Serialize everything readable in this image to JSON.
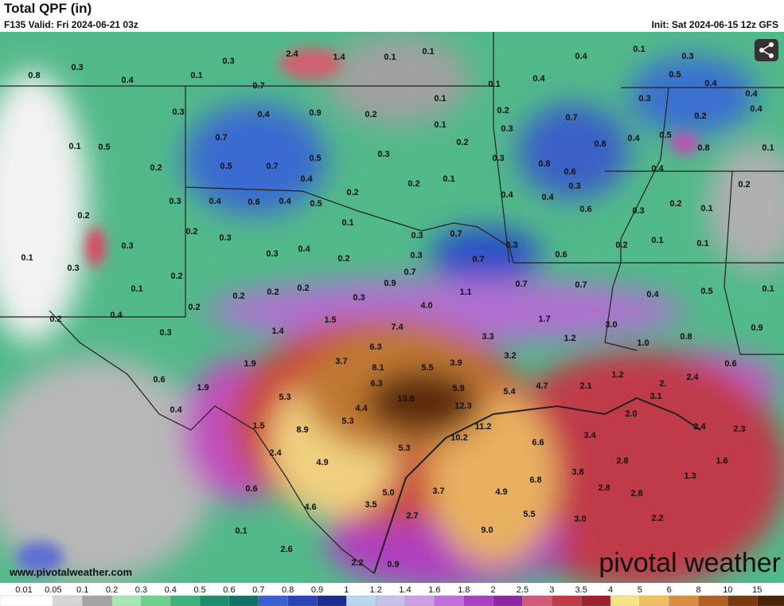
{
  "header": {
    "title": "Total QPF (in)",
    "valid": "F135 Valid: Fri 2024-06-21 03z",
    "init": "Init: Sat 2024-06-15 12z GFS"
  },
  "map": {
    "labels": [
      "0.8",
      "0.3",
      "0.4",
      "0.1",
      "0.3",
      "2.4",
      "1.4",
      "0.1",
      "0.1",
      "0.7",
      "0.3",
      "0.4",
      "0.9",
      "0.2",
      "0.1",
      "0.1",
      "0.4",
      "0.4",
      "0.1",
      "0.3",
      "0.5",
      "0.4",
      "0.4",
      "0.3",
      "0.2",
      "0.7",
      "0.2",
      "0.4",
      "0.1",
      "0.5",
      "0.7",
      "0.1",
      "0.3",
      "0.8",
      "0.4",
      "0.5",
      "0.8",
      "0.1",
      "0.2",
      "0.5",
      "0.7",
      "0.5",
      "0.3",
      "0.2",
      "0.3",
      "0.8",
      "0.6",
      "0.4",
      "0.1",
      "0.2",
      "0.2",
      "0.4",
      "0.4",
      "0.3",
      "0.2",
      "0.2",
      "0.3",
      "0.4",
      "0.6",
      "0.4",
      "0.4",
      "0.5",
      "0.1",
      "0.6",
      "0.3",
      "0.2",
      "0.1",
      "0.2",
      "0.3",
      "0.3",
      "0.7",
      "0.3",
      "0.1",
      "0.1",
      "0.3",
      "0.3",
      "0.4",
      "0.2",
      "0.3",
      "0.7",
      "0.6",
      "0.2",
      "0.1",
      "0.3",
      "0.2",
      "0.7",
      "0.9",
      "0.7",
      "0.7",
      "0.1",
      "0.2",
      "0.2",
      "0.2",
      "0.3",
      "1.1",
      "0.4",
      "0.5",
      "0.1",
      "0.2",
      "4.0",
      "0.4",
      "0.2",
      "1.7",
      "3.0",
      "1.5",
      "7.4",
      "0.3",
      "1.4",
      "3.3",
      "1.2",
      "0.8",
      "0.9",
      "6.3",
      "1.0",
      "3.2",
      "3.7",
      "1.9",
      "8.1",
      "5.5",
      "3.9",
      "1.2",
      "2.4",
      "0.6",
      "0.6",
      "6.3",
      "5.9",
      "5.4",
      "4.7",
      "2.1",
      "2.",
      "1.9",
      "5.3",
      "13.6",
      "3.1",
      "4.4",
      "12.3",
      "0.4",
      "5.3",
      "2.0",
      "1.5",
      "11.2",
      "8.9",
      "10.2",
      "2.4",
      "2.3",
      "3.4",
      "6.6",
      "5.3",
      "2.4",
      "4.9",
      "2.8",
      "1.6",
      "3.8",
      "6.8",
      "1.3",
      "0.6",
      "3.7",
      "4.9",
      "5.0",
      "2.8",
      "2.8",
      "4.6",
      "3.5",
      "2.7",
      "5.5",
      "3.0",
      "2.2",
      "9.0",
      "0.1",
      "2.6",
      "2.2",
      "0.9"
    ]
  },
  "footer": {
    "website": "www.pivotalweather.com",
    "logo": "pivotal weather"
  },
  "colorbar": {
    "labels": [
      "0.01",
      "0.05",
      "0.1",
      "0.2",
      "0.3",
      "0.4",
      "0.5",
      "0.6",
      "0.7",
      "0.8",
      "0.9",
      "1",
      "1.2",
      "1.4",
      "1.6",
      "1.8",
      "2",
      "2.5",
      "3",
      "3.5",
      "4",
      "5",
      "6",
      "8",
      "10",
      "15"
    ],
    "colors": [
      "#ffffff",
      "#d6d6d6",
      "#a5a5a5",
      "#a8e6b8",
      "#6fd08f",
      "#3fb07a",
      "#1f8c70",
      "#117268",
      "#3a5fd0",
      "#2a44b8",
      "#1c2c8c",
      "#b8d8f0",
      "#c8c0e8",
      "#c9a0e0",
      "#c070d8",
      "#a840c0",
      "#8a2aa0",
      "#d05a78",
      "#c03a48",
      "#a02030",
      "#f5e58a",
      "#f0c060",
      "#d89040",
      "#b06020",
      "#7a3a10",
      "#4a2408"
    ]
  }
}
